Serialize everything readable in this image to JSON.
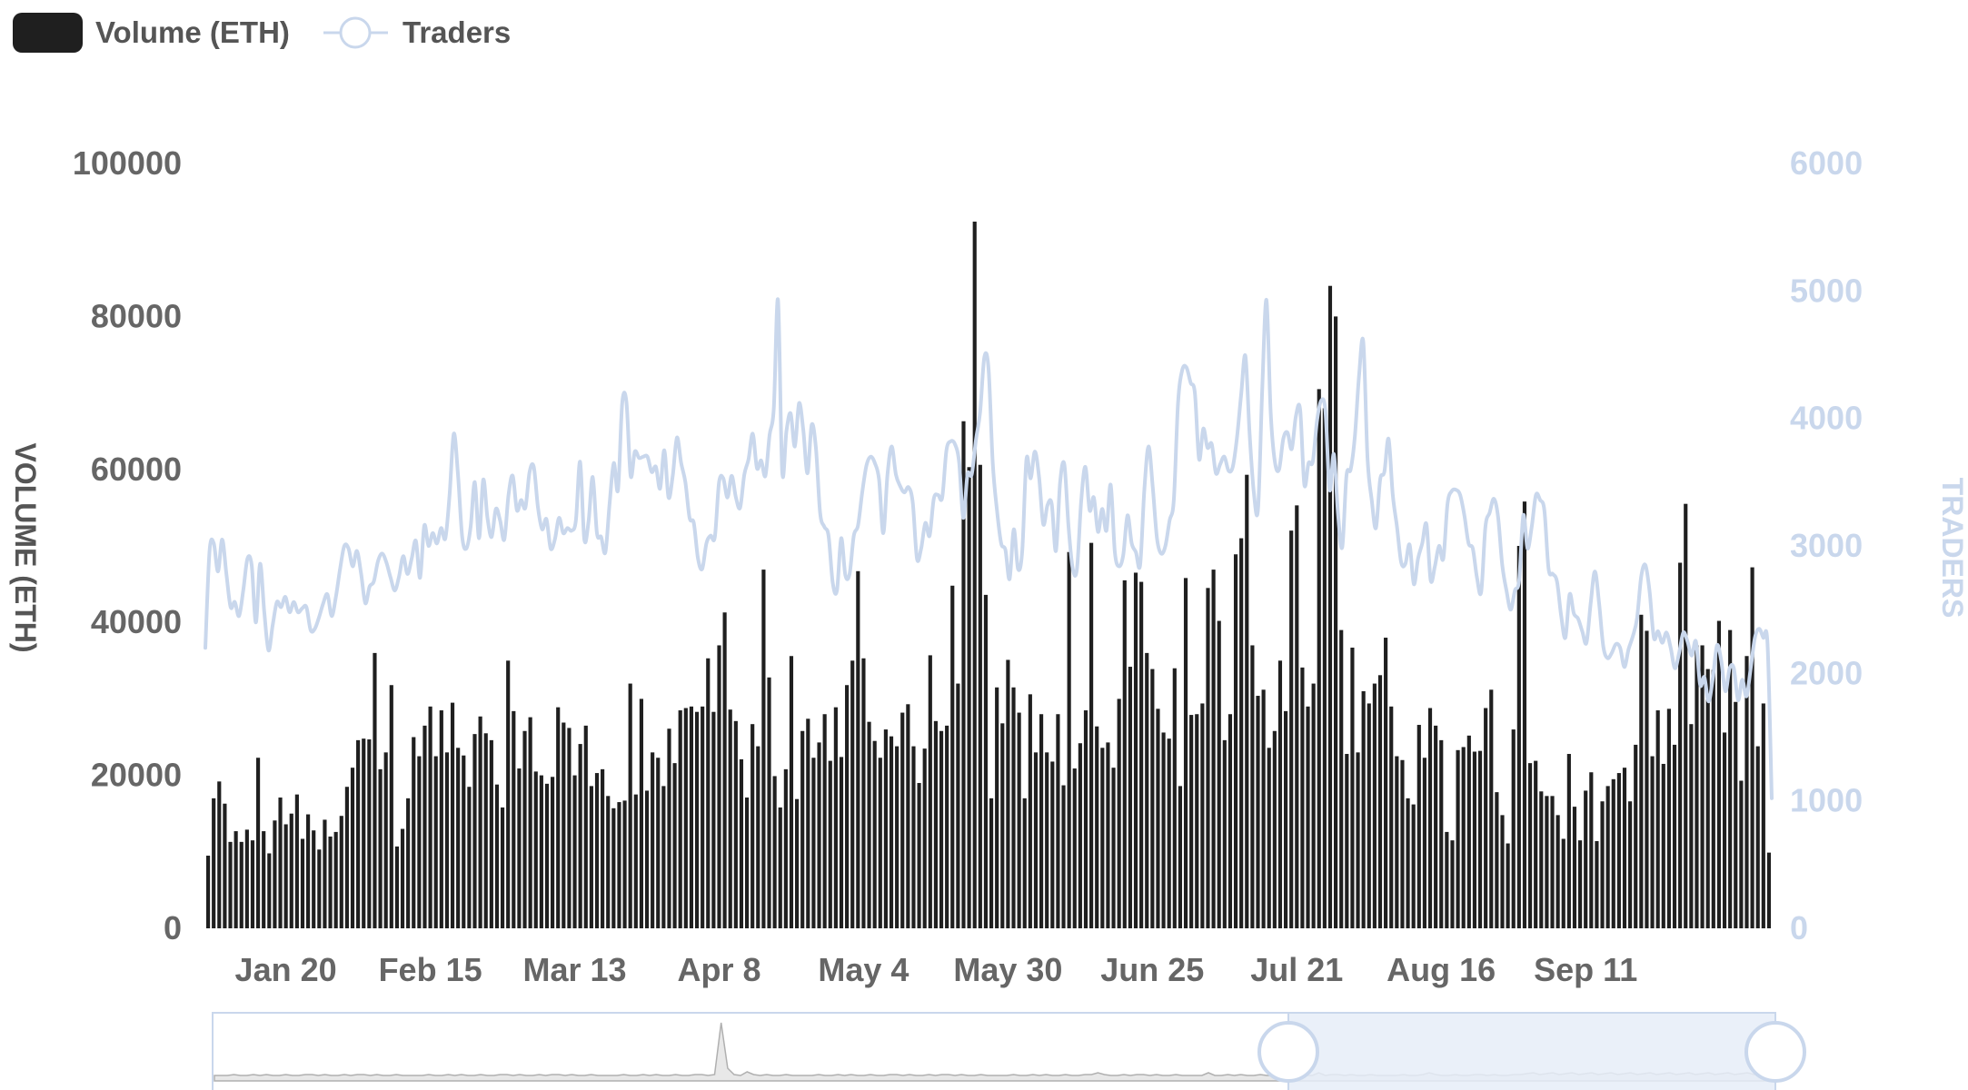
{
  "legend": {
    "volume_label": "Volume (ETH)",
    "traders_label": "Traders"
  },
  "colors": {
    "volume": "#1f1f1f",
    "traders": "#c9d7ec",
    "axis_text": "#666666",
    "navigator_fill": "#e6edf8",
    "navigator_border": "#c9d7ec"
  },
  "chart_data": {
    "type": "bar",
    "left_axis": {
      "title": "VOLUME (ETH)",
      "range": [
        0,
        100000
      ],
      "ticks": [
        "0",
        "20000",
        "40000",
        "60000",
        "80000",
        "100000"
      ]
    },
    "right_axis": {
      "title": "TRADERS",
      "range": [
        0,
        6000
      ],
      "ticks": [
        "0",
        "1000",
        "2000",
        "3000",
        "4000",
        "5000",
        "6000"
      ]
    },
    "x_axis": {
      "ticks": [
        "Jan 20",
        "Feb 15",
        "Mar 13",
        "Apr 8",
        "May 4",
        "May 30",
        "Jun 25",
        "Jul 21",
        "Aug 16",
        "Sep 11"
      ]
    },
    "grid": false,
    "legend_position": "top-left",
    "series": [
      {
        "name": "Volume (ETH)",
        "type": "bar",
        "axis": "left",
        "points_per_day": 1,
        "values": [
          9500,
          17000,
          19200,
          16300,
          11300,
          12700,
          11300,
          12900,
          11500,
          22300,
          12700,
          9800,
          14100,
          17100,
          13600,
          15000,
          17500,
          11700,
          14900,
          12800,
          10300,
          14200,
          12000,
          12600,
          14700,
          18500,
          21000,
          24600,
          24800,
          24700,
          36000,
          20800,
          23000,
          31800,
          10700,
          13000,
          17000,
          25000,
          22500,
          26500,
          29000,
          22500,
          28500,
          23000,
          29500,
          23600,
          22600,
          18500,
          25400,
          27700,
          25500,
          24600,
          18800,
          15800,
          35000,
          28400,
          20900,
          25800,
          27600,
          20500,
          20000,
          18900,
          19800,
          28900,
          26900,
          26200,
          20000,
          24100,
          26500,
          18600,
          20300,
          20800,
          17300,
          15700,
          16500,
          16700,
          32000,
          17500,
          30000,
          18000,
          23000,
          22300,
          18600,
          26100,
          21600,
          28500,
          28800,
          29000,
          28300,
          29000,
          35300,
          28300,
          37000,
          41300,
          28600,
          27100,
          22100,
          17100,
          26700,
          23800,
          46900,
          32800,
          19900,
          15800,
          20800,
          35600,
          16900,
          25800,
          27400,
          22300,
          24300,
          28000,
          21900,
          28900,
          22400,
          31800,
          35000,
          46700,
          35300,
          27000,
          24500,
          22300,
          26000,
          25100,
          23800,
          28200,
          29300,
          23800,
          19000,
          23500,
          35700,
          27100,
          25800,
          26500,
          44800,
          32000,
          66300,
          60300,
          92400,
          60600,
          43600,
          17000,
          31500,
          26800,
          35100,
          31500,
          28200,
          17000,
          30600,
          23000,
          28000,
          23000,
          21800,
          28000,
          18700,
          49200,
          20900,
          24200,
          28500,
          50400,
          26400,
          23600,
          24300,
          21000,
          30000,
          45500,
          34200,
          46500,
          45300,
          36000,
          33900,
          28700,
          25600,
          24800,
          34000,
          18600,
          45800,
          27900,
          28000,
          29400,
          44500,
          46900,
          40200,
          24600,
          28000,
          48900,
          51000,
          59300,
          37000,
          30400,
          31200,
          23600,
          25800,
          35000,
          28400,
          52000,
          55300,
          34100,
          29000,
          32000,
          70500,
          68000,
          84000,
          80000,
          39000,
          22800,
          36700,
          23000,
          31000,
          29400,
          32000,
          33100,
          38000,
          29000,
          22500,
          22000,
          17000,
          16200,
          26600,
          22300,
          28800,
          26500,
          24600,
          12600,
          11500,
          23300,
          23700,
          25200,
          23100,
          23200,
          28800,
          31200,
          17800,
          14800,
          11100,
          26000,
          50000,
          55800,
          21600,
          21900,
          17900,
          17300,
          17300,
          14800,
          11700,
          22800,
          15900,
          11500,
          18000,
          20400,
          11400,
          16600,
          18600,
          19500,
          20300,
          21000,
          16600,
          24000,
          41000,
          38900,
          22500,
          28500,
          21500,
          28700,
          24000,
          47800,
          55500,
          26700,
          37000,
          37000,
          33900,
          33800,
          40200,
          25600,
          39000,
          29600,
          19300,
          35600,
          47200,
          23800,
          29400,
          9900
        ]
      },
      {
        "name": "Traders",
        "type": "line",
        "axis": "right",
        "points_per_day": 2,
        "values": [
          2200,
          2960,
          3020,
          2800,
          3050,
          2780,
          2520,
          2560,
          2450,
          2650,
          2900,
          2850,
          2400,
          2860,
          2480,
          2180,
          2380,
          2560,
          2520,
          2600,
          2480,
          2560,
          2480,
          2510,
          2520,
          2340,
          2350,
          2440,
          2550,
          2620,
          2450,
          2600,
          2820,
          3000,
          2980,
          2840,
          2960,
          2780,
          2550,
          2680,
          2720,
          2880,
          2940,
          2870,
          2750,
          2650,
          2760,
          2920,
          2780,
          2900,
          3040,
          2750,
          3160,
          3000,
          3100,
          3020,
          3140,
          3060,
          3400,
          3880,
          3560,
          3070,
          2980,
          3150,
          3500,
          3060,
          3520,
          3220,
          3070,
          3290,
          3200,
          3050,
          3400,
          3550,
          3280,
          3360,
          3300,
          3580,
          3620,
          3300,
          3130,
          3210,
          2980,
          3050,
          3220,
          3100,
          3140,
          3120,
          3200,
          3660,
          3050,
          3190,
          3540,
          3100,
          3070,
          2950,
          3330,
          3650,
          3440,
          4120,
          4130,
          3550,
          3740,
          3690,
          3700,
          3700,
          3580,
          3620,
          3450,
          3750,
          3380,
          3550,
          3850,
          3650,
          3500,
          3220,
          3180,
          2900,
          2820,
          3020,
          3080,
          3070,
          3500,
          3530,
          3380,
          3550,
          3380,
          3300,
          3560,
          3680,
          3880,
          3610,
          3670,
          3550,
          3870,
          4080,
          4930,
          3580,
          3900,
          4040,
          3780,
          4120,
          3910,
          3570,
          3950,
          3770,
          3260,
          3150,
          3080,
          2710,
          2650,
          3060,
          2770,
          2780,
          3080,
          3160,
          3420,
          3630,
          3700,
          3650,
          3520,
          3100,
          3560,
          3780,
          3560,
          3470,
          3420,
          3460,
          3340,
          2900,
          2980,
          3180,
          3080,
          3370,
          3400,
          3380,
          3750,
          3820,
          3800,
          3660,
          3220,
          3560,
          3560,
          3830,
          4050,
          4480,
          4390,
          3650,
          3280,
          3020,
          2970,
          2740,
          3130,
          2820,
          2960,
          3680,
          3530,
          3740,
          3540,
          3170,
          3320,
          3330,
          2960,
          3500,
          3640,
          3150,
          2820,
          2820,
          3350,
          3620,
          3280,
          3380,
          3110,
          3290,
          3120,
          3480,
          2950,
          2840,
          2930,
          3240,
          3020,
          2950,
          2850,
          3440,
          3780,
          3460,
          3060,
          2940,
          3000,
          3200,
          3360,
          4120,
          4380,
          4400,
          4280,
          4200,
          3680,
          3920,
          3770,
          3800,
          3570,
          3640,
          3700,
          3590,
          3620,
          3850,
          4190,
          4490,
          3880,
          3420,
          3290,
          4230,
          4930,
          4050,
          3660,
          3600,
          3840,
          3890,
          3760,
          4020,
          4070,
          3480,
          3650,
          3660,
          3980,
          4140,
          4060,
          3440,
          3720,
          3250,
          2990,
          3550,
          3600,
          3860,
          4340,
          4600,
          3690,
          3360,
          3140,
          3520,
          3580,
          3840,
          3400,
          3150,
          2870,
          2860,
          3010,
          2700,
          2900,
          3020,
          3170,
          2730,
          2840,
          3000,
          2900,
          3330,
          3430,
          3440,
          3400,
          3240,
          3020,
          2980,
          2750,
          2640,
          3150,
          3260,
          3370,
          3230,
          2850,
          2650,
          2500,
          2650,
          2730,
          3240,
          2980,
          3150,
          3400,
          3360,
          3280,
          2820,
          2780,
          2720,
          2450,
          2280,
          2620,
          2470,
          2430,
          2330,
          2240,
          2550,
          2800,
          2550,
          2210,
          2120,
          2160,
          2230,
          2200,
          2050,
          2190,
          2290,
          2430,
          2760,
          2850,
          2640,
          2280,
          2330,
          2240,
          2320,
          2200,
          2040,
          2160,
          2320,
          2250,
          2140,
          2250,
          1910,
          1970,
          1780,
          1960,
          2220,
          2100,
          1860,
          2040,
          2040,
          1790,
          1950,
          1820,
          2040,
          2280,
          2350,
          2280,
          2230,
          1020
        ]
      }
    ]
  }
}
